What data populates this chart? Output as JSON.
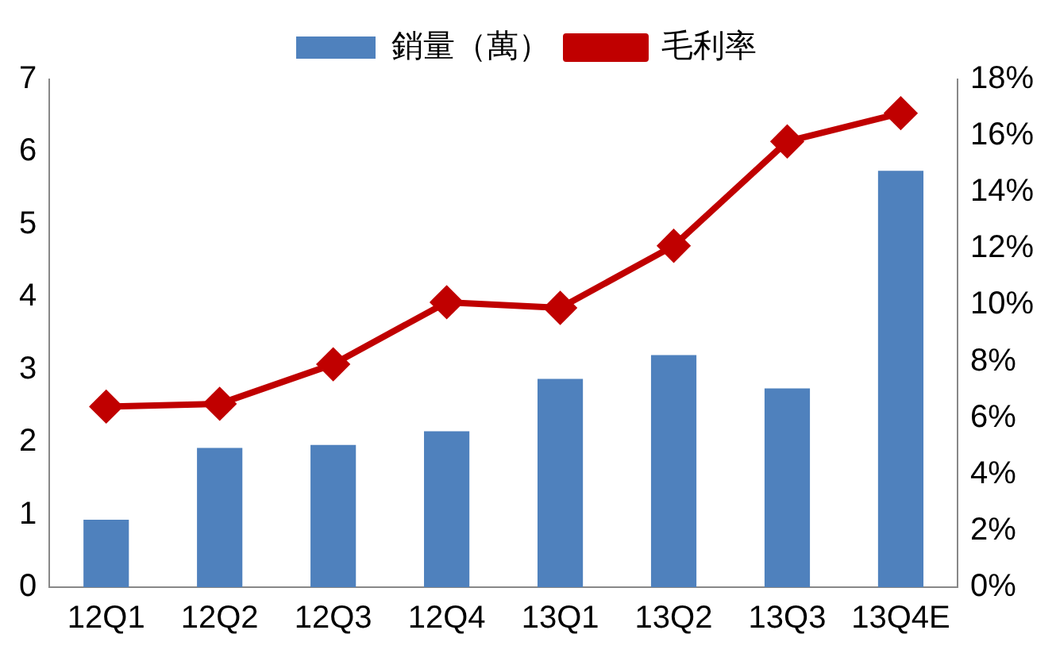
{
  "chart_data": {
    "type": "bar",
    "categories": [
      "12Q1",
      "12Q2",
      "12Q3",
      "12Q4",
      "13Q1",
      "13Q2",
      "13Q3",
      "13Q4E"
    ],
    "series": [
      {
        "name": "銷量（萬）",
        "color": "#4f81bd",
        "values": [
          0.93,
          1.92,
          1.96,
          2.15,
          2.87,
          3.2,
          2.74,
          5.74
        ]
      },
      {
        "name": "毛利率",
        "type": "line",
        "axis": "y2",
        "color": "#c00000",
        "values": [
          6.4,
          6.5,
          7.9,
          10.1,
          9.9,
          12.1,
          15.8,
          16.8
        ]
      }
    ],
    "ylim": [
      0,
      7
    ],
    "yticks": [
      0,
      1,
      2,
      3,
      4,
      5,
      6,
      7
    ],
    "y2lim": [
      0,
      18
    ],
    "y2ticks": [
      {
        "value": 0,
        "label": "0%"
      },
      {
        "value": 2,
        "label": "2%"
      },
      {
        "value": 4,
        "label": "4%"
      },
      {
        "value": 6,
        "label": "6%"
      },
      {
        "value": 8,
        "label": "8%"
      },
      {
        "value": 10,
        "label": "10%"
      },
      {
        "value": 12,
        "label": "12%"
      },
      {
        "value": 14,
        "label": "14%"
      },
      {
        "value": 16,
        "label": "16%"
      },
      {
        "value": 18,
        "label": "18%"
      }
    ],
    "grid": false,
    "legend": "top",
    "marker": "diamond",
    "line_style": "solid"
  }
}
